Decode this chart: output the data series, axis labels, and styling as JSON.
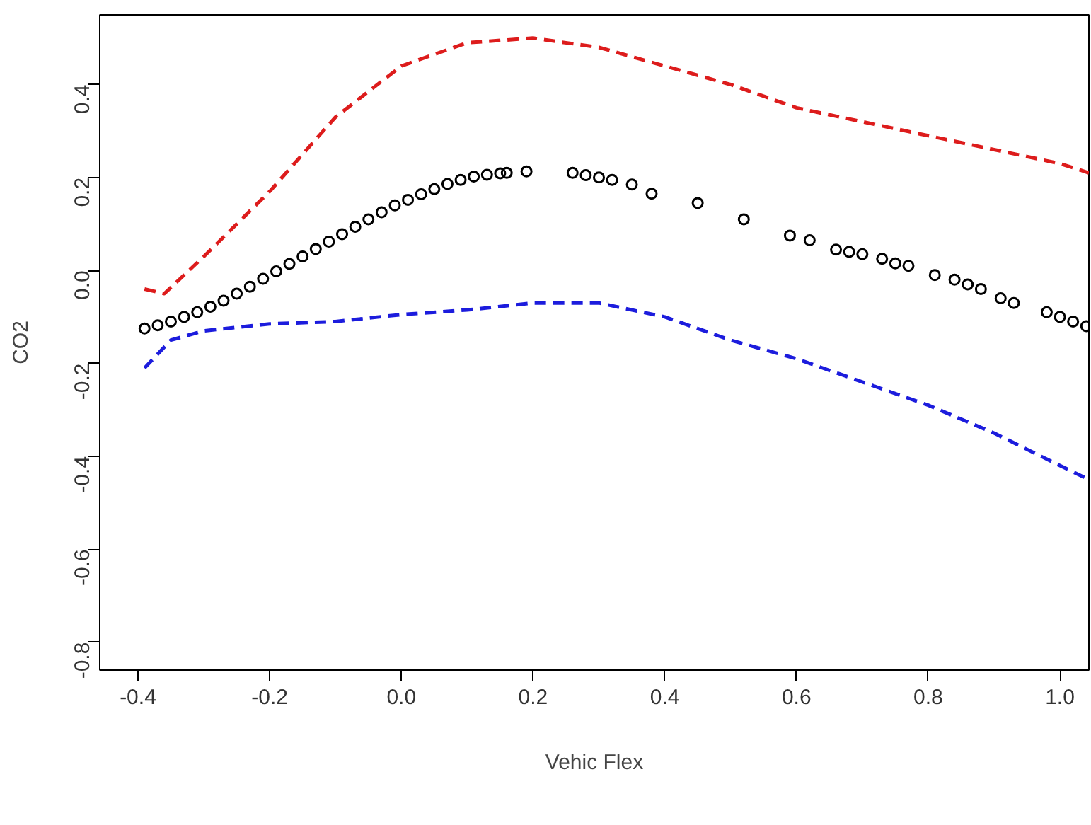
{
  "chart_data": {
    "type": "scatter",
    "xlabel": "Vehic Flex",
    "ylabel": "CO2",
    "xlim": [
      -0.458,
      1.044
    ],
    "ylim": [
      -0.86,
      0.55
    ],
    "xticks": [
      {
        "value": -0.4,
        "label": "-0.4"
      },
      {
        "value": -0.2,
        "label": "-0.2"
      },
      {
        "value": 0,
        "label": "0.0"
      },
      {
        "value": 0.2,
        "label": "0.2"
      },
      {
        "value": 0.4,
        "label": "0.4"
      },
      {
        "value": 0.6,
        "label": "0.6"
      },
      {
        "value": 0.8,
        "label": "0.8"
      },
      {
        "value": 1.0,
        "label": "1.0"
      }
    ],
    "yticks": [
      {
        "value": -0.8,
        "label": "-0.8"
      },
      {
        "value": -0.6,
        "label": "-0.6"
      },
      {
        "value": -0.4,
        "label": "-0.4"
      },
      {
        "value": -0.2,
        "label": "-0.2"
      },
      {
        "value": 0,
        "label": "0.0"
      },
      {
        "value": 0.2,
        "label": "0.2"
      },
      {
        "value": 0.4,
        "label": "0.4"
      }
    ],
    "grid": false,
    "series": [
      {
        "color": "#000000",
        "marker": "circle",
        "x": [
          -0.39,
          -0.37,
          -0.35,
          -0.33,
          -0.31,
          -0.29,
          -0.27,
          -0.25,
          -0.23,
          -0.21,
          -0.19,
          -0.17,
          -0.15,
          -0.13,
          -0.11,
          -0.09,
          -0.07,
          -0.05,
          -0.03,
          -0.01,
          0.01,
          0.03,
          0.05,
          0.07,
          0.09,
          0.11,
          0.13,
          0.15,
          0.16,
          0.19,
          0.26,
          0.28,
          0.3,
          0.32,
          0.35,
          0.38,
          0.45,
          0.52,
          0.59,
          0.62,
          0.66,
          0.68,
          0.7,
          0.73,
          0.75,
          0.77,
          0.81,
          0.84,
          0.86,
          0.88,
          0.91,
          0.93,
          0.98,
          1.0,
          1.02,
          1.04
        ],
        "values": [
          -0.125,
          -0.118,
          -0.11,
          -0.1,
          -0.09,
          -0.078,
          -0.065,
          -0.05,
          -0.035,
          -0.018,
          -0.002,
          0.014,
          0.03,
          0.046,
          0.062,
          0.078,
          0.094,
          0.11,
          0.125,
          0.14,
          0.152,
          0.164,
          0.175,
          0.186,
          0.195,
          0.202,
          0.206,
          0.209,
          0.21,
          0.213,
          0.21,
          0.205,
          0.2,
          0.195,
          0.185,
          0.165,
          0.145,
          0.11,
          0.075,
          0.065,
          0.045,
          0.04,
          0.035,
          0.025,
          0.015,
          0.01,
          -0.01,
          -0.02,
          -0.03,
          -0.04,
          -0.06,
          -0.07,
          -0.09,
          -0.1,
          -0.11,
          -0.12
        ]
      },
      {
        "type": "line",
        "color": "#dd1c1c",
        "line_style": "dashed",
        "x": [
          -0.39,
          -0.36,
          -0.33,
          -0.3,
          -0.2,
          -0.1,
          0.0,
          0.1,
          0.2,
          0.3,
          0.4,
          0.5,
          0.6,
          0.7,
          0.8,
          0.9,
          1.0,
          1.044
        ],
        "values": [
          -0.04,
          -0.05,
          -0.01,
          0.03,
          0.17,
          0.33,
          0.44,
          0.49,
          0.5,
          0.48,
          0.44,
          0.4,
          0.35,
          0.32,
          0.29,
          0.26,
          0.23,
          0.21
        ]
      },
      {
        "type": "line",
        "color": "#1c1cdd",
        "line_style": "dashed",
        "x": [
          -0.39,
          -0.35,
          -0.3,
          -0.2,
          -0.1,
          0.0,
          0.1,
          0.2,
          0.3,
          0.4,
          0.5,
          0.6,
          0.7,
          0.8,
          0.9,
          1.0,
          1.044
        ],
        "values": [
          -0.21,
          -0.15,
          -0.13,
          -0.115,
          -0.11,
          -0.095,
          -0.085,
          -0.07,
          -0.07,
          -0.1,
          -0.15,
          -0.19,
          -0.24,
          -0.29,
          -0.35,
          -0.42,
          -0.45
        ]
      }
    ]
  }
}
